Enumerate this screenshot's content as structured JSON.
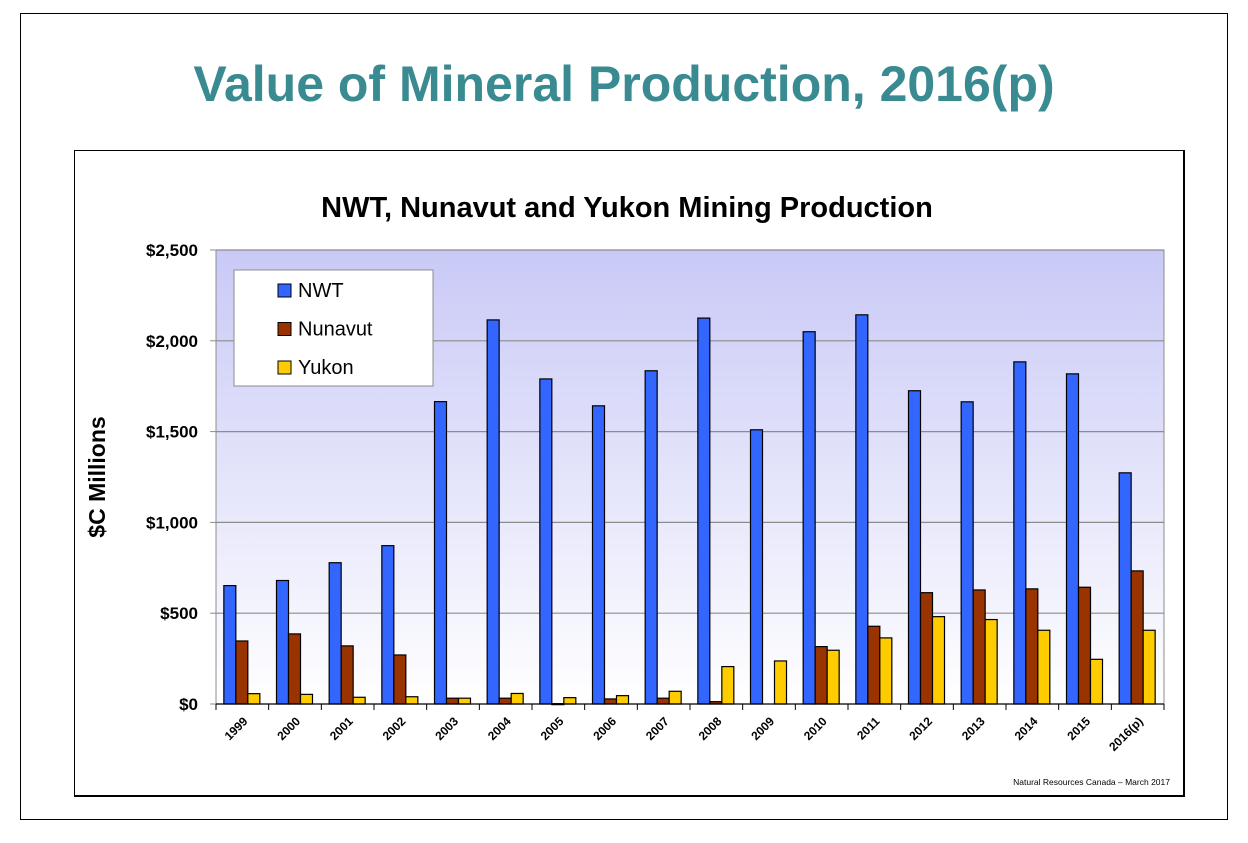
{
  "slide": {
    "title": "Value of Mineral Production, 2016(p)",
    "source_note": "Natural Resources Canada – March 2017"
  },
  "colors": {
    "title": "#3a8a91",
    "nwt": "#3366ff",
    "nunavut": "#993300",
    "yukon": "#ffcc00",
    "plot_top": "#c9c9f7",
    "plot_bottom": "#ffffff",
    "grid": "#8c8c8c"
  },
  "chart_data": {
    "type": "bar",
    "title": "NWT, Nunavut and Yukon Mining Production",
    "xlabel": "",
    "ylabel": "$C Millions",
    "ylim": [
      0,
      2500
    ],
    "yticks": [
      0,
      500,
      1000,
      1500,
      2000,
      2500
    ],
    "ytick_labels": [
      "$0",
      "$500",
      "$1,000",
      "$1,500",
      "$2,000",
      "$2,500"
    ],
    "grid": true,
    "legend_position": "top-left",
    "categories": [
      "1999",
      "2000",
      "2001",
      "2002",
      "2003",
      "2004",
      "2005",
      "2006",
      "2007",
      "2008",
      "2009",
      "2010",
      "2011",
      "2012",
      "2013",
      "2014",
      "2015",
      "2016(p)"
    ],
    "series": [
      {
        "name": "NWT",
        "values": [
          652,
          680,
          778,
          872,
          1665,
          2115,
          1790,
          1642,
          1835,
          2125,
          1510,
          2050,
          2143,
          1725,
          1664,
          1884,
          1818,
          1273
        ]
      },
      {
        "name": "Nunavut",
        "values": [
          347,
          386,
          320,
          270,
          32,
          32,
          2,
          28,
          32,
          13,
          0,
          316,
          428,
          613,
          628,
          634,
          643,
          733
        ]
      },
      {
        "name": "Yukon",
        "values": [
          57,
          53,
          37,
          40,
          32,
          58,
          35,
          46,
          70,
          206,
          237,
          296,
          364,
          481,
          465,
          406,
          246,
          406
        ]
      }
    ]
  }
}
